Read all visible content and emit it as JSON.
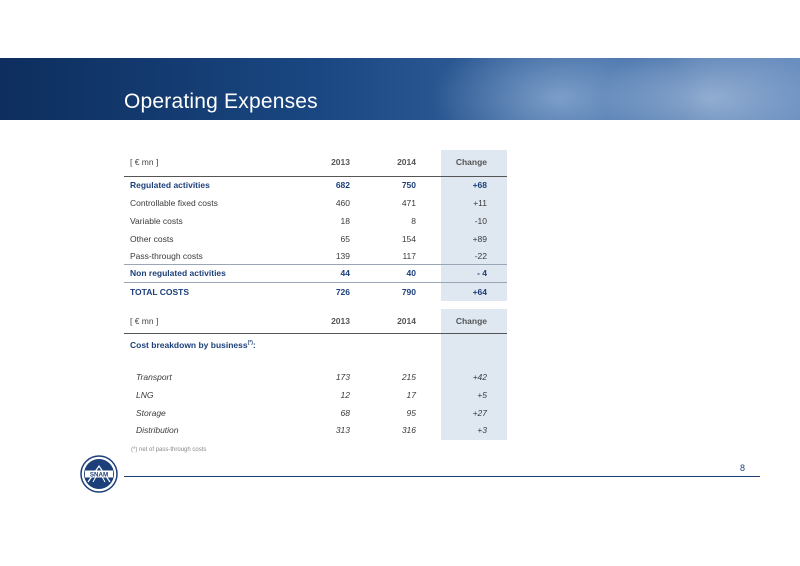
{
  "slide": {
    "title": "Operating Expenses",
    "page_number": "8",
    "logo_text": "SNAM",
    "footnote": "(*) net of pass-through costs"
  },
  "table1": {
    "header": {
      "unit": "[ € mn ]",
      "col1": "2013",
      "col2": "2014",
      "col3": "Change"
    },
    "rows": [
      {
        "label": "Regulated activities",
        "v2013": "682",
        "v2014": "750",
        "change": "+68"
      },
      {
        "label": "Controllable fixed costs",
        "v2013": "460",
        "v2014": "471",
        "change": "+11"
      },
      {
        "label": "Variable costs",
        "v2013": "18",
        "v2014": "8",
        "change": "-10"
      },
      {
        "label": "Other costs",
        "v2013": "65",
        "v2014": "154",
        "change": "+89"
      },
      {
        "label": "Pass-through costs",
        "v2013": "139",
        "v2014": "117",
        "change": "-22"
      },
      {
        "label": "Non regulated activities",
        "v2013": "44",
        "v2014": "40",
        "change": "- 4"
      },
      {
        "label": "TOTAL COSTS",
        "v2013": "726",
        "v2014": "790",
        "change": "+64"
      }
    ]
  },
  "table2": {
    "header": {
      "unit": "[ € mn ]",
      "col1": "2013",
      "col2": "2014",
      "col3": "Change"
    },
    "section_label": "Cost breakdown by business",
    "section_sup": "(*)",
    "section_suffix": ":",
    "rows": [
      {
        "label": "Transport",
        "v2013": "173",
        "v2014": "215",
        "change": "+42"
      },
      {
        "label": "LNG",
        "v2013": "12",
        "v2014": "17",
        "change": "+5"
      },
      {
        "label": "Storage",
        "v2013": "68",
        "v2014": "95",
        "change": "+27"
      },
      {
        "label": "Distribution",
        "v2013": "313",
        "v2014": "316",
        "change": "+3"
      }
    ]
  },
  "colors": {
    "brand_blue": "#1c3f7a",
    "shade": "#dfe7f1"
  }
}
